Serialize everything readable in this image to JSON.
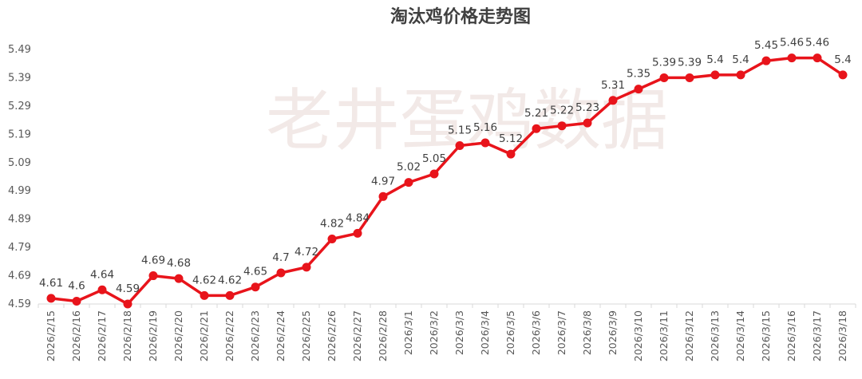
{
  "chart_data": {
    "type": "line",
    "title": "淘汰鸡价格走势图",
    "watermark": "老井蛋鸡数据",
    "categories": [
      "2026/2/15",
      "2026/2/16",
      "2026/2/17",
      "2026/2/18",
      "2026/2/19",
      "2026/2/20",
      "2026/2/21",
      "2026/2/22",
      "2026/2/23",
      "2026/2/24",
      "2026/2/25",
      "2026/2/26",
      "2026/2/27",
      "2026/2/28",
      "2026/3/1",
      "2026/3/2",
      "2026/3/3",
      "2026/3/4",
      "2026/3/5",
      "2026/3/6",
      "2026/3/7",
      "2026/3/8",
      "2026/3/9",
      "2026/3/10",
      "2026/3/11",
      "2026/3/12",
      "2026/3/13",
      "2026/3/14",
      "2026/3/15",
      "2026/3/16",
      "2026/3/17",
      "2026/3/18"
    ],
    "values": [
      4.61,
      4.6,
      4.64,
      4.59,
      4.69,
      4.68,
      4.62,
      4.62,
      4.65,
      4.7,
      4.72,
      4.82,
      4.84,
      4.97,
      5.02,
      5.05,
      5.15,
      5.16,
      5.12,
      5.21,
      5.22,
      5.23,
      5.31,
      5.35,
      5.39,
      5.39,
      5.4,
      5.4,
      5.45,
      5.46,
      5.46,
      5.4
    ],
    "y_ticks": [
      "4.59",
      "4.69",
      "4.79",
      "4.89",
      "4.99",
      "5.09",
      "5.19",
      "5.29",
      "5.39",
      "5.49"
    ],
    "ylim": [
      4.59,
      5.49
    ],
    "xlabel": "",
    "ylabel": "",
    "grid": false,
    "legend": "none",
    "line_color": "#e8141b",
    "marker_color": "#e8141b"
  }
}
